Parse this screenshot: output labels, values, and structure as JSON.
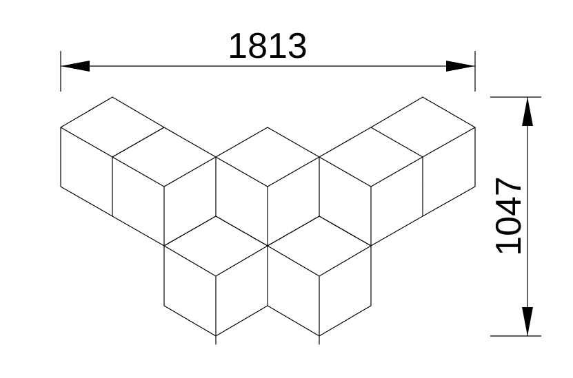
{
  "drawing": {
    "width_label": "1813",
    "height_label": "1047"
  },
  "colors": {
    "line": "#000000",
    "background": "#ffffff"
  }
}
